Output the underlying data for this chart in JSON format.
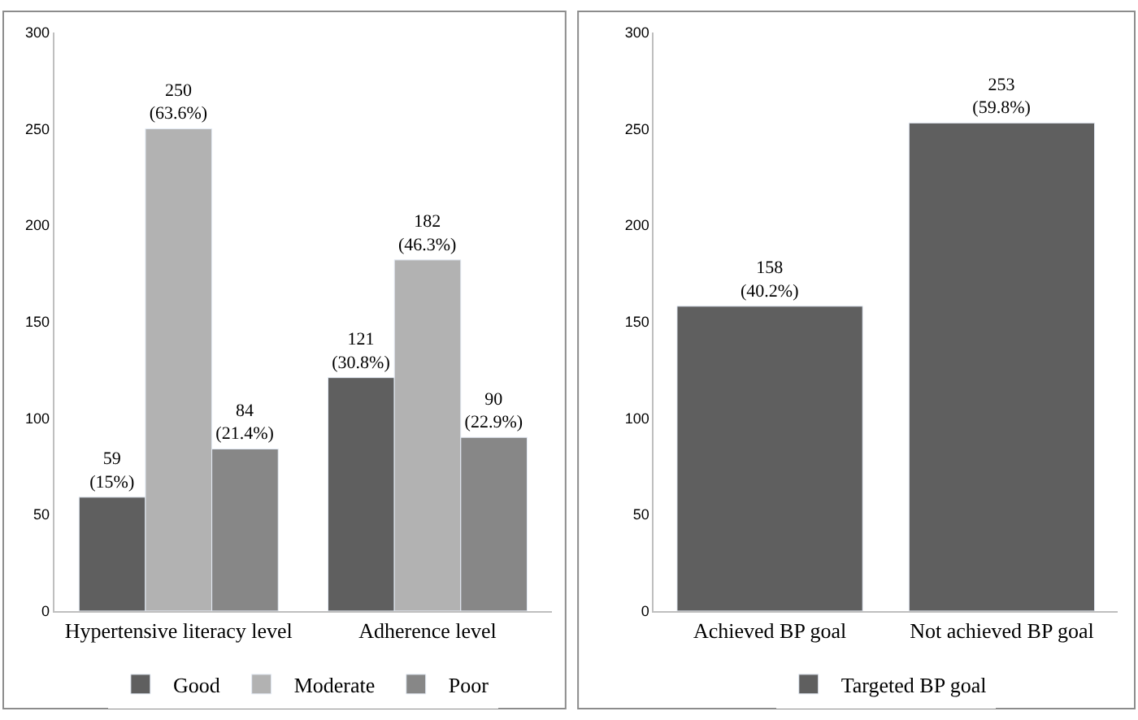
{
  "chart_data": [
    {
      "type": "bar",
      "categories": [
        "Hypertensive literacy level",
        "Adherence level"
      ],
      "series": [
        {
          "name": "Good",
          "color": "#5f5f5f",
          "values": [
            59,
            121
          ],
          "value_labels": [
            "59\n(15%)",
            "121\n(30.8%)"
          ]
        },
        {
          "name": "Moderate",
          "color": "#b2b2b2",
          "values": [
            250,
            182
          ],
          "value_labels": [
            "250\n(63.6%)",
            "182\n(46.3%)"
          ]
        },
        {
          "name": "Poor",
          "color": "#878787",
          "values": [
            84,
            90
          ],
          "value_labels": [
            "84\n(21.4%)",
            "90\n(22.9%)"
          ]
        }
      ],
      "ylim": [
        0,
        300
      ],
      "yticks": [
        0,
        50,
        100,
        150,
        200,
        250,
        300
      ],
      "legend": "bottom"
    },
    {
      "type": "bar",
      "categories": [
        "Achieved BP goal",
        "Not achieved BP goal"
      ],
      "series": [
        {
          "name": "Targeted BP goal",
          "color": "#5f5f5f",
          "values": [
            158,
            253
          ],
          "value_labels": [
            "158\n(40.2%)",
            "253\n(59.8%)"
          ]
        }
      ],
      "ylim": [
        0,
        300
      ],
      "yticks": [
        0,
        50,
        100,
        150,
        200,
        250,
        300
      ],
      "legend": "bottom"
    }
  ]
}
